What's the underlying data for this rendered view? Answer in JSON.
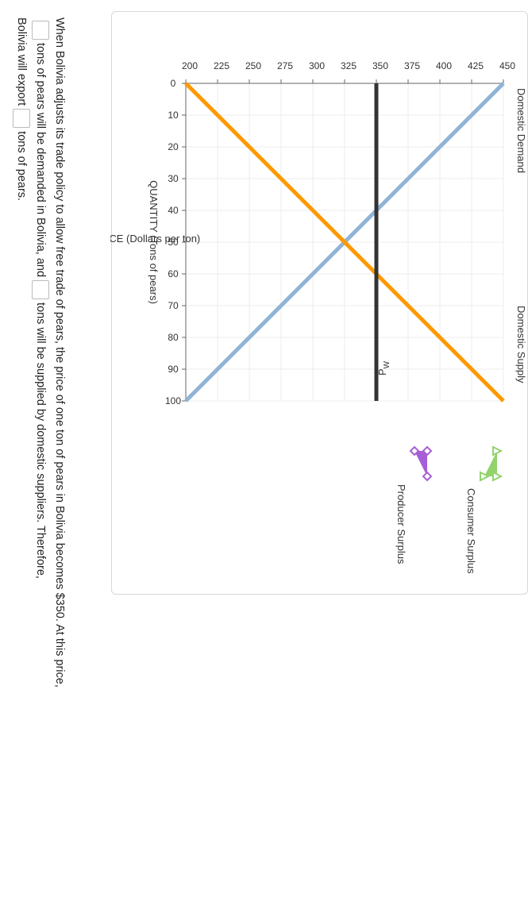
{
  "chart_data": {
    "type": "line",
    "title": "",
    "xlabel": "QUANTITY (Tons of pears)",
    "ylabel": "PRICE (Dollars per ton)",
    "xlim": [
      0,
      100
    ],
    "ylim": [
      200,
      450
    ],
    "x_ticks": [
      0,
      10,
      20,
      30,
      40,
      50,
      60,
      70,
      80,
      90,
      100
    ],
    "y_ticks": [
      200,
      225,
      250,
      275,
      300,
      325,
      350,
      375,
      400,
      425,
      450
    ],
    "grid": true,
    "series": [
      {
        "name": "Domestic Demand",
        "x": [
          0,
          100
        ],
        "y": [
          450,
          200
        ],
        "color": "#8fb4d6"
      },
      {
        "name": "Domestic Supply",
        "x": [
          0,
          100
        ],
        "y": [
          200,
          450
        ],
        "color": "#ff9900"
      }
    ],
    "world_price": {
      "label": "P",
      "subscript": "W",
      "value": 350,
      "color": "#333333"
    },
    "legend": [
      {
        "name": "Consumer Surplus",
        "color": "#92d36e",
        "icon": "triangle-outline-icon"
      },
      {
        "name": "Producer Surplus",
        "color": "#a65ed6",
        "icon": "diamond-outline-icon"
      }
    ],
    "legend_position": "right"
  },
  "question": {
    "part1": "When Bolivia adjusts its trade policy to allow free trade of pears, the price of one ton of pears in Bolivia becomes $350. At this price,",
    "part2": "tons of pears will be demanded in Bolivia, and",
    "part3": "tons will be supplied by domestic suppliers. Therefore,",
    "part4": "Bolivia will export",
    "part5": "tons of pears."
  }
}
